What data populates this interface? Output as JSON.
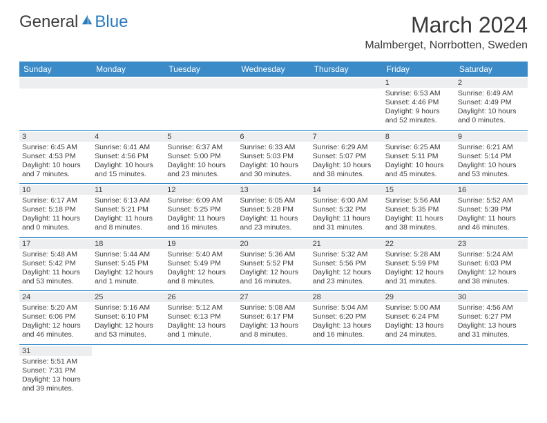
{
  "brand": {
    "part1": "General",
    "part2": "Blue"
  },
  "title": "March 2024",
  "location": "Malmberget, Norrbotten, Sweden",
  "colors": {
    "header_bg": "#3a8bc8",
    "header_text": "#ffffff",
    "daynum_bg": "#eceef0",
    "cell_border": "#3a8bc8",
    "body_text": "#3a3a3a",
    "brand_blue": "#2a7bc0"
  },
  "dayHeaders": [
    "Sunday",
    "Monday",
    "Tuesday",
    "Wednesday",
    "Thursday",
    "Friday",
    "Saturday"
  ],
  "weeks": [
    [
      null,
      null,
      null,
      null,
      null,
      {
        "n": "1",
        "sunrise": "6:53 AM",
        "sunset": "4:46 PM",
        "daylight": "9 hours and 52 minutes."
      },
      {
        "n": "2",
        "sunrise": "6:49 AM",
        "sunset": "4:49 PM",
        "daylight": "10 hours and 0 minutes."
      }
    ],
    [
      {
        "n": "3",
        "sunrise": "6:45 AM",
        "sunset": "4:53 PM",
        "daylight": "10 hours and 7 minutes."
      },
      {
        "n": "4",
        "sunrise": "6:41 AM",
        "sunset": "4:56 PM",
        "daylight": "10 hours and 15 minutes."
      },
      {
        "n": "5",
        "sunrise": "6:37 AM",
        "sunset": "5:00 PM",
        "daylight": "10 hours and 23 minutes."
      },
      {
        "n": "6",
        "sunrise": "6:33 AM",
        "sunset": "5:03 PM",
        "daylight": "10 hours and 30 minutes."
      },
      {
        "n": "7",
        "sunrise": "6:29 AM",
        "sunset": "5:07 PM",
        "daylight": "10 hours and 38 minutes."
      },
      {
        "n": "8",
        "sunrise": "6:25 AM",
        "sunset": "5:11 PM",
        "daylight": "10 hours and 45 minutes."
      },
      {
        "n": "9",
        "sunrise": "6:21 AM",
        "sunset": "5:14 PM",
        "daylight": "10 hours and 53 minutes."
      }
    ],
    [
      {
        "n": "10",
        "sunrise": "6:17 AM",
        "sunset": "5:18 PM",
        "daylight": "11 hours and 0 minutes."
      },
      {
        "n": "11",
        "sunrise": "6:13 AM",
        "sunset": "5:21 PM",
        "daylight": "11 hours and 8 minutes."
      },
      {
        "n": "12",
        "sunrise": "6:09 AM",
        "sunset": "5:25 PM",
        "daylight": "11 hours and 16 minutes."
      },
      {
        "n": "13",
        "sunrise": "6:05 AM",
        "sunset": "5:28 PM",
        "daylight": "11 hours and 23 minutes."
      },
      {
        "n": "14",
        "sunrise": "6:00 AM",
        "sunset": "5:32 PM",
        "daylight": "11 hours and 31 minutes."
      },
      {
        "n": "15",
        "sunrise": "5:56 AM",
        "sunset": "5:35 PM",
        "daylight": "11 hours and 38 minutes."
      },
      {
        "n": "16",
        "sunrise": "5:52 AM",
        "sunset": "5:39 PM",
        "daylight": "11 hours and 46 minutes."
      }
    ],
    [
      {
        "n": "17",
        "sunrise": "5:48 AM",
        "sunset": "5:42 PM",
        "daylight": "11 hours and 53 minutes."
      },
      {
        "n": "18",
        "sunrise": "5:44 AM",
        "sunset": "5:45 PM",
        "daylight": "12 hours and 1 minute."
      },
      {
        "n": "19",
        "sunrise": "5:40 AM",
        "sunset": "5:49 PM",
        "daylight": "12 hours and 8 minutes."
      },
      {
        "n": "20",
        "sunrise": "5:36 AM",
        "sunset": "5:52 PM",
        "daylight": "12 hours and 16 minutes."
      },
      {
        "n": "21",
        "sunrise": "5:32 AM",
        "sunset": "5:56 PM",
        "daylight": "12 hours and 23 minutes."
      },
      {
        "n": "22",
        "sunrise": "5:28 AM",
        "sunset": "5:59 PM",
        "daylight": "12 hours and 31 minutes."
      },
      {
        "n": "23",
        "sunrise": "5:24 AM",
        "sunset": "6:03 PM",
        "daylight": "12 hours and 38 minutes."
      }
    ],
    [
      {
        "n": "24",
        "sunrise": "5:20 AM",
        "sunset": "6:06 PM",
        "daylight": "12 hours and 46 minutes."
      },
      {
        "n": "25",
        "sunrise": "5:16 AM",
        "sunset": "6:10 PM",
        "daylight": "12 hours and 53 minutes."
      },
      {
        "n": "26",
        "sunrise": "5:12 AM",
        "sunset": "6:13 PM",
        "daylight": "13 hours and 1 minute."
      },
      {
        "n": "27",
        "sunrise": "5:08 AM",
        "sunset": "6:17 PM",
        "daylight": "13 hours and 8 minutes."
      },
      {
        "n": "28",
        "sunrise": "5:04 AM",
        "sunset": "6:20 PM",
        "daylight": "13 hours and 16 minutes."
      },
      {
        "n": "29",
        "sunrise": "5:00 AM",
        "sunset": "6:24 PM",
        "daylight": "13 hours and 24 minutes."
      },
      {
        "n": "30",
        "sunrise": "4:56 AM",
        "sunset": "6:27 PM",
        "daylight": "13 hours and 31 minutes."
      }
    ],
    [
      {
        "n": "31",
        "sunrise": "5:51 AM",
        "sunset": "7:31 PM",
        "daylight": "13 hours and 39 minutes."
      },
      null,
      null,
      null,
      null,
      null,
      null
    ]
  ]
}
